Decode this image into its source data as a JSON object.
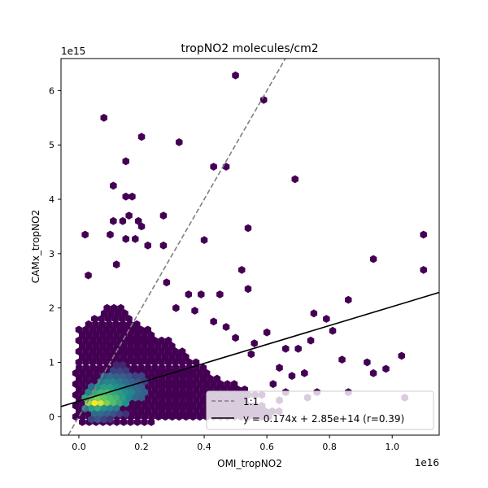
{
  "chart_data": {
    "type": "hexbin-scatter",
    "title": "tropNO2 molecules/cm2",
    "xlabel": "OMI_tropNO2",
    "ylabel": "CAMx_tropNO2",
    "x_offset_label": "1e16",
    "y_offset_label": "1e15",
    "xlim": [
      -0.057,
      1.15
    ],
    "ylim": [
      -0.34,
      6.59
    ],
    "xticks": [
      "0.0",
      "0.2",
      "0.4",
      "0.6",
      "0.8",
      "1.0"
    ],
    "xtick_values": [
      0.0,
      0.2,
      0.4,
      0.6,
      0.8,
      1.0
    ],
    "yticks": [
      "0",
      "1",
      "2",
      "3",
      "4",
      "5",
      "6"
    ],
    "ytick_values": [
      0,
      1,
      2,
      3,
      4,
      5,
      6
    ],
    "grid": false,
    "colormap": "viridis",
    "lines": [
      {
        "label": "1:1",
        "slope": 10,
        "intercept": 0,
        "color": "#808080",
        "style": "dashed"
      },
      {
        "label": "y = 0.174x + 2.85e+14 (r=0.39)",
        "slope": 1.74,
        "intercept": 0.285,
        "color": "#000000",
        "style": "solid"
      }
    ],
    "legend": {
      "position": "lower-right",
      "entries": [
        "1:1",
        "y = 0.174x + 2.85e+14 (r=0.39)"
      ]
    },
    "hex_rows": [
      [
        -0.1,
        0.0,
        0.24
      ],
      [
        0.0,
        -0.01,
        0.62
      ],
      [
        0.1,
        -0.01,
        0.65
      ],
      [
        0.2,
        -0.01,
        0.6
      ],
      [
        0.3,
        -0.01,
        0.55
      ],
      [
        0.4,
        -0.01,
        0.6
      ],
      [
        0.5,
        -0.01,
        0.55
      ],
      [
        0.6,
        -0.01,
        0.5
      ],
      [
        0.7,
        -0.01,
        0.45
      ],
      [
        0.8,
        -0.01,
        0.42
      ],
      [
        0.9,
        -0.01,
        0.4
      ],
      [
        1.0,
        0.0,
        0.38
      ],
      [
        1.1,
        0.0,
        0.36
      ],
      [
        1.2,
        0.0,
        0.35
      ],
      [
        1.3,
        0.0,
        0.3
      ],
      [
        1.4,
        0.0,
        0.3
      ],
      [
        1.5,
        0.0,
        0.25
      ],
      [
        1.6,
        0.0,
        0.23
      ],
      [
        1.7,
        0.02,
        0.2
      ],
      [
        1.8,
        0.05,
        0.18
      ],
      [
        1.9,
        0.07,
        0.16
      ],
      [
        2.0,
        0.09,
        0.14
      ]
    ],
    "hex_dense": [
      [
        0.05,
        0.25,
        1.0
      ],
      [
        0.07,
        0.25,
        0.95
      ],
      [
        0.03,
        0.25,
        0.85
      ],
      [
        0.09,
        0.25,
        0.8
      ],
      [
        0.04,
        0.35,
        0.75
      ],
      [
        0.06,
        0.35,
        0.8
      ],
      [
        0.08,
        0.35,
        0.75
      ],
      [
        0.1,
        0.35,
        0.7
      ],
      [
        0.12,
        0.35,
        0.65
      ],
      [
        0.11,
        0.25,
        0.7
      ],
      [
        0.13,
        0.25,
        0.6
      ],
      [
        0.15,
        0.25,
        0.5
      ],
      [
        0.02,
        0.35,
        0.6
      ],
      [
        0.05,
        0.45,
        0.6
      ],
      [
        0.07,
        0.45,
        0.65
      ],
      [
        0.09,
        0.45,
        0.65
      ],
      [
        0.11,
        0.45,
        0.6
      ],
      [
        0.13,
        0.45,
        0.55
      ],
      [
        0.15,
        0.45,
        0.5
      ],
      [
        0.17,
        0.45,
        0.45
      ],
      [
        0.03,
        0.45,
        0.45
      ],
      [
        0.04,
        0.15,
        0.55
      ],
      [
        0.06,
        0.15,
        0.6
      ],
      [
        0.08,
        0.15,
        0.5
      ],
      [
        0.1,
        0.15,
        0.45
      ],
      [
        0.12,
        0.15,
        0.4
      ],
      [
        0.02,
        0.15,
        0.4
      ],
      [
        0.06,
        0.55,
        0.5
      ],
      [
        0.08,
        0.55,
        0.55
      ],
      [
        0.1,
        0.55,
        0.55
      ],
      [
        0.12,
        0.55,
        0.5
      ],
      [
        0.14,
        0.55,
        0.45
      ],
      [
        0.16,
        0.55,
        0.4
      ],
      [
        0.18,
        0.55,
        0.35
      ],
      [
        0.2,
        0.55,
        0.3
      ],
      [
        0.04,
        0.55,
        0.35
      ],
      [
        0.14,
        0.35,
        0.55
      ],
      [
        0.16,
        0.35,
        0.45
      ],
      [
        0.18,
        0.35,
        0.35
      ],
      [
        0.2,
        0.35,
        0.3
      ],
      [
        0.19,
        0.45,
        0.35
      ],
      [
        0.21,
        0.45,
        0.3
      ],
      [
        0.07,
        0.65,
        0.4
      ],
      [
        0.09,
        0.65,
        0.45
      ],
      [
        0.11,
        0.65,
        0.45
      ],
      [
        0.13,
        0.65,
        0.4
      ],
      [
        0.15,
        0.65,
        0.35
      ],
      [
        0.17,
        0.65,
        0.3
      ],
      [
        0.19,
        0.65,
        0.25
      ],
      [
        0.21,
        0.65,
        0.2
      ],
      [
        0.08,
        0.75,
        0.3
      ],
      [
        0.1,
        0.75,
        0.35
      ],
      [
        0.12,
        0.75,
        0.3
      ],
      [
        0.14,
        0.75,
        0.3
      ],
      [
        0.16,
        0.75,
        0.25
      ],
      [
        0.18,
        0.75,
        0.2
      ],
      [
        0.2,
        0.75,
        0.2
      ],
      [
        0.11,
        0.85,
        0.2
      ],
      [
        0.13,
        0.85,
        0.2
      ],
      [
        0.15,
        0.85,
        0.18
      ],
      [
        0.12,
        0.95,
        0.12
      ],
      [
        0.14,
        0.95,
        0.12
      ],
      [
        0.05,
        0.05,
        0.35
      ],
      [
        0.07,
        0.05,
        0.35
      ],
      [
        0.09,
        0.05,
        0.3
      ],
      [
        0.11,
        0.05,
        0.25
      ],
      [
        0.13,
        0.05,
        0.2
      ],
      [
        0.15,
        0.05,
        0.15
      ],
      [
        0.06,
        -0.05,
        0.25
      ],
      [
        0.08,
        -0.05,
        0.2
      ],
      [
        0.1,
        -0.05,
        0.15
      ],
      [
        0.04,
        -0.05,
        0.2
      ]
    ],
    "hex_outliers": [
      [
        0.08,
        5.5
      ],
      [
        0.2,
        5.15
      ],
      [
        0.32,
        5.05
      ],
      [
        0.5,
        6.28
      ],
      [
        0.59,
        5.83
      ],
      [
        0.15,
        4.7
      ],
      [
        0.43,
        4.6
      ],
      [
        0.47,
        4.6
      ],
      [
        0.69,
        4.37
      ],
      [
        0.11,
        4.25
      ],
      [
        0.15,
        4.05
      ],
      [
        0.17,
        4.05
      ],
      [
        0.16,
        3.7
      ],
      [
        0.27,
        3.7
      ],
      [
        0.11,
        3.6
      ],
      [
        0.14,
        3.6
      ],
      [
        0.19,
        3.6
      ],
      [
        0.2,
        3.5
      ],
      [
        0.1,
        3.35
      ],
      [
        0.02,
        3.35
      ],
      [
        0.54,
        3.47
      ],
      [
        0.15,
        3.27
      ],
      [
        0.18,
        3.27
      ],
      [
        0.22,
        3.15
      ],
      [
        0.27,
        3.15
      ],
      [
        0.4,
        3.25
      ],
      [
        1.1,
        3.35
      ],
      [
        0.94,
        2.9
      ],
      [
        0.52,
        2.7
      ],
      [
        0.12,
        2.8
      ],
      [
        0.03,
        2.6
      ],
      [
        0.28,
        2.47
      ],
      [
        0.35,
        2.25
      ],
      [
        0.39,
        2.25
      ],
      [
        0.45,
        2.25
      ],
      [
        0.54,
        2.35
      ],
      [
        1.1,
        2.7
      ],
      [
        0.31,
        2.0
      ],
      [
        0.37,
        1.95
      ],
      [
        0.43,
        1.75
      ],
      [
        0.47,
        1.65
      ],
      [
        0.75,
        1.9
      ],
      [
        0.79,
        1.8
      ],
      [
        0.86,
        2.15
      ],
      [
        0.81,
        1.58
      ],
      [
        0.6,
        1.55
      ],
      [
        0.5,
        1.45
      ],
      [
        0.56,
        1.35
      ],
      [
        0.66,
        1.25
      ],
      [
        0.7,
        1.25
      ],
      [
        0.55,
        1.15
      ],
      [
        1.03,
        1.12
      ],
      [
        0.74,
        1.4
      ],
      [
        0.84,
        1.05
      ],
      [
        0.92,
        1.0
      ],
      [
        0.64,
        0.9
      ],
      [
        0.98,
        0.88
      ],
      [
        0.94,
        0.8
      ],
      [
        0.72,
        0.8
      ],
      [
        0.68,
        0.75
      ],
      [
        0.62,
        0.6
      ],
      [
        0.76,
        0.45
      ],
      [
        0.86,
        0.45
      ],
      [
        0.73,
        0.35
      ],
      [
        0.66,
        0.45
      ],
      [
        0.64,
        0.3
      ],
      [
        1.04,
        0.35
      ]
    ]
  }
}
